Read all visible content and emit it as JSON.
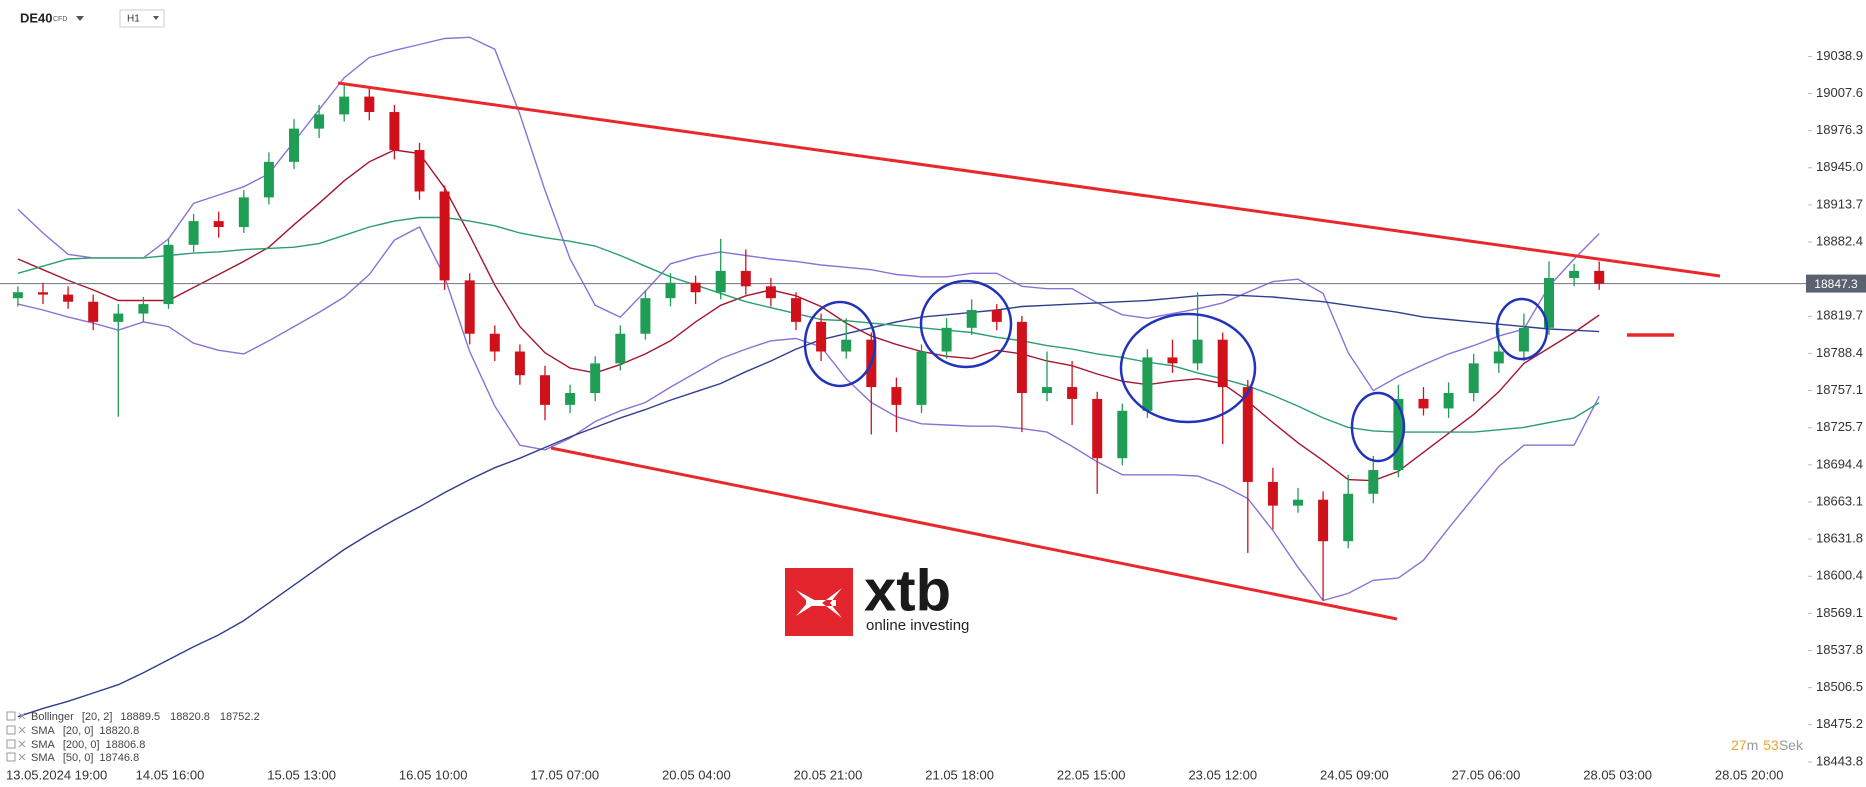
{
  "header": {
    "symbol": "DE40",
    "instrument_type": "CFD",
    "interval": "H1"
  },
  "logo": {
    "brand": "xtb",
    "tagline": "online investing"
  },
  "timer": {
    "minutes": "27",
    "minutes_unit": "m",
    "seconds": "53",
    "seconds_unit": "Sek"
  },
  "chart_data": {
    "type": "candlestick",
    "up_color": "#1f9d55",
    "down_color": "#d0111b",
    "price_line_color": "#6b7380",
    "grid": false,
    "ylim": [
      18438.7,
      19086.5
    ],
    "yticks": [
      19038.9,
      19007.6,
      18976.3,
      {
        "value": 18945,
        "label": "18945.0"
      },
      18913.7,
      18882.4,
      18819.7,
      18788.4,
      18757.1,
      18725.7,
      18694.4,
      18663.1,
      18631.8,
      18600.4,
      18569.1,
      18537.8,
      18506.5,
      18475.2,
      18443.8
    ],
    "xlabels": [
      "13.05.2024 19:00",
      "14.05 16:00",
      "15.05 13:00",
      "16.05 10:00",
      "17.05 07:00",
      "20.05 04:00",
      "20.05 21:00",
      "21.05 18:00",
      "22.05 15:00",
      "23.05 12:00",
      "24.05 09:00",
      "27.05 06:00",
      "28.05 03:00",
      "28.05 20:00"
    ],
    "ohlc": [
      [
        18835,
        18845,
        18828,
        18840
      ],
      [
        18840,
        18848,
        18830,
        18838
      ],
      [
        18838,
        18845,
        18826,
        18832
      ],
      [
        18832,
        18838,
        18808,
        18815
      ],
      [
        18815,
        18830,
        18735,
        18822
      ],
      [
        18822,
        18836,
        18815,
        18830
      ],
      [
        18830,
        18885,
        18826,
        18880
      ],
      [
        18880,
        18906,
        18874,
        18900
      ],
      [
        18900,
        18908,
        18886,
        18895
      ],
      [
        18895,
        18926,
        18890,
        18920
      ],
      [
        18920,
        18958,
        18914,
        18950
      ],
      [
        18950,
        18986,
        18944,
        18978
      ],
      [
        18978,
        18998,
        18970,
        18990
      ],
      [
        18990,
        19017,
        18984,
        19005
      ],
      [
        19005,
        19012,
        18985,
        18992
      ],
      [
        18992,
        18998,
        18952,
        18960
      ],
      [
        18960,
        18966,
        18918,
        18925
      ],
      [
        18925,
        18930,
        18842,
        18850
      ],
      [
        18850,
        18856,
        18796,
        18805
      ],
      [
        18805,
        18812,
        18782,
        18790
      ],
      [
        18790,
        18796,
        18762,
        18770
      ],
      [
        18770,
        18778,
        18732,
        18745
      ],
      [
        18745,
        18762,
        18738,
        18755
      ],
      [
        18755,
        18786,
        18748,
        18780
      ],
      [
        18780,
        18812,
        18774,
        18805
      ],
      [
        18805,
        18842,
        18800,
        18835
      ],
      [
        18835,
        18856,
        18828,
        18848
      ],
      [
        18848,
        18854,
        18830,
        18840
      ],
      [
        18840,
        18885,
        18834,
        18858
      ],
      [
        18858,
        18876,
        18838,
        18845
      ],
      [
        18845,
        18852,
        18828,
        18835
      ],
      [
        18835,
        18840,
        18808,
        18815
      ],
      [
        18815,
        18822,
        18782,
        18790
      ],
      [
        18790,
        18818,
        18784,
        18800
      ],
      [
        18800,
        18806,
        18720,
        18760
      ],
      [
        18760,
        18768,
        18722,
        18745
      ],
      [
        18745,
        18796,
        18738,
        18790
      ],
      [
        18790,
        18818,
        18784,
        18810
      ],
      [
        18810,
        18834,
        18804,
        18825
      ],
      [
        18825,
        18830,
        18808,
        18815
      ],
      [
        18815,
        18820,
        18722,
        18755
      ],
      [
        18755,
        18790,
        18748,
        18760
      ],
      [
        18760,
        18782,
        18728,
        18750
      ],
      [
        18750,
        18756,
        18670,
        18700
      ],
      [
        18700,
        18746,
        18694,
        18740
      ],
      [
        18740,
        18792,
        18734,
        18785
      ],
      [
        18785,
        18800,
        18772,
        18780
      ],
      [
        18780,
        18840,
        18774,
        18800
      ],
      [
        18800,
        18806,
        18712,
        18760
      ],
      [
        18760,
        18766,
        18620,
        18680
      ],
      [
        18680,
        18692,
        18640,
        18660
      ],
      [
        18660,
        18675,
        18654,
        18665
      ],
      [
        18665,
        18672,
        18580,
        18630
      ],
      [
        18630,
        18686,
        18624,
        18670
      ],
      [
        18670,
        18702,
        18662,
        18690
      ],
      [
        18690,
        18762,
        18684,
        18750
      ],
      [
        18750,
        18760,
        18736,
        18742
      ],
      [
        18742,
        18764,
        18734,
        18755
      ],
      [
        18755,
        18788,
        18748,
        18780
      ],
      [
        18780,
        18810,
        18772,
        18790
      ],
      [
        18790,
        18822,
        18782,
        18810
      ],
      [
        18810,
        18866,
        18804,
        18852
      ],
      [
        18852,
        18864,
        18845,
        18858
      ],
      [
        18858,
        18866,
        18842,
        18847.3
      ]
    ],
    "series": [
      {
        "name": "Bollinger",
        "params": "[20, 2]",
        "color": "#8b72d6",
        "upper": [
          18910,
          18890,
          18872,
          18869,
          18869,
          18869,
          18885,
          18915,
          18922,
          18929,
          18940,
          18967,
          18994,
          19021,
          19038,
          19044,
          19049,
          19054,
          19055,
          19045,
          18990,
          18926,
          18868,
          18829,
          18819,
          18841,
          18864,
          18870,
          18874,
          18871,
          18868,
          18866,
          18863,
          18861,
          18859,
          18855,
          18853,
          18853,
          18856,
          18856,
          18845,
          18843,
          18843,
          18831,
          18821,
          18818,
          18822,
          18826,
          18831,
          18840,
          18849,
          18851,
          18839,
          18789,
          18757,
          18769,
          18779,
          18788,
          18795,
          18803,
          18809,
          18845,
          18868,
          18889.5
        ],
        "lower": [
          18830,
          18825,
          18819,
          18814,
          18808,
          18815,
          18811,
          18797,
          18791,
          18788,
          18799,
          18811,
          18823,
          18836,
          18855,
          18884,
          18895,
          18853,
          18790,
          18744,
          18711,
          18707,
          18717,
          18731,
          18740,
          18747,
          18760,
          18772,
          18784,
          18792,
          18799,
          18801,
          18794,
          18767,
          18747,
          18735,
          18729,
          18728,
          18727,
          18727,
          18725,
          18722,
          18710,
          18697,
          18686,
          18686,
          18686,
          18685,
          18677,
          18666,
          18639,
          18608,
          18580,
          18586,
          18597,
          18599,
          18614,
          18641,
          18667,
          18693,
          18711,
          18711,
          18711,
          18752.2
        ]
      },
      {
        "name": "SMA",
        "params": "[20, 0]",
        "color": "#a3182e",
        "values": [
          18868,
          18859,
          18850,
          18842,
          18833,
          18833,
          18833,
          18844,
          18855,
          18866,
          18878,
          18897,
          18915,
          18934,
          18950,
          18960,
          18957,
          18928,
          18888,
          18846,
          18811,
          18789,
          18776,
          18772,
          18779,
          18788,
          18799,
          18815,
          18829,
          18837,
          18842,
          18837,
          18828,
          18814,
          18803,
          18796,
          18790,
          18786,
          18784,
          18791,
          18788,
          18782,
          18778,
          18771,
          18765,
          18762,
          18765,
          18767,
          18763,
          18748,
          18730,
          18713,
          18698,
          18682,
          18681,
          18689,
          18705,
          18721,
          18737,
          18756,
          18780,
          18793,
          18806,
          18820.8
        ]
      },
      {
        "name": "SMA",
        "params": "[200, 0]",
        "color": "#2f3e8e",
        "values": [
          18482,
          18489,
          18495,
          18502,
          18509,
          18519,
          18530,
          18541,
          18551,
          18563,
          18578,
          18593,
          18608,
          18623,
          18636,
          18648,
          18659,
          18671,
          18682,
          18692,
          18700,
          18709,
          18718,
          18726,
          18734,
          18741,
          18749,
          18756,
          18763,
          18773,
          18782,
          18792,
          18800,
          18805,
          18810,
          18815,
          18819,
          18821,
          18823,
          18825,
          18828,
          18829,
          18830,
          18831,
          18832,
          18833,
          18835,
          18837,
          18838,
          18837,
          18836,
          18834,
          18832,
          18829,
          18826,
          18823,
          18819,
          18817,
          18815,
          18813,
          18811,
          18809,
          18808,
          18806.8
        ]
      },
      {
        "name": "SMA",
        "params": "[50, 0]",
        "color": "#2c9e72",
        "values": [
          18856,
          18862,
          18868,
          18869,
          18869,
          18869,
          18871,
          18873,
          18874,
          18876,
          18877,
          18878,
          18881,
          18888,
          18895,
          18900,
          18903,
          18903,
          18900,
          18896,
          18890,
          18886,
          18883,
          18879,
          18871,
          18862,
          18853,
          18846,
          18839,
          18832,
          18827,
          18822,
          18817,
          18816,
          18814,
          18812,
          18810,
          18808,
          18806,
          18802,
          18799,
          18795,
          18792,
          18788,
          18785,
          18781,
          18778,
          18772,
          18767,
          18761,
          18753,
          18744,
          18734,
          18726,
          18723,
          18722,
          18722,
          18722,
          18722,
          18724,
          18726,
          18730,
          18734,
          18746.8
        ]
      }
    ]
  }
}
